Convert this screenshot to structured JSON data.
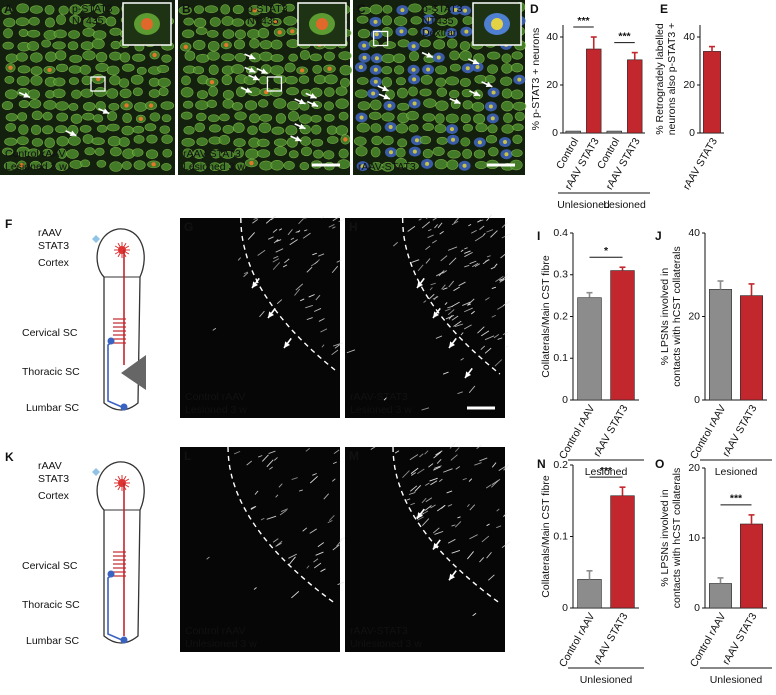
{
  "figure": {
    "micrographs": [
      {
        "label": "A",
        "stains": [
          {
            "text": "p-STAT3",
            "color": "#e0502a"
          },
          {
            "text": "NT435",
            "color": "#7dc242"
          }
        ],
        "caption": [
          "Control rAAV",
          "Lesioned 3 w"
        ]
      },
      {
        "label": "B",
        "stains": [
          {
            "text": "p-STAT3",
            "color": "#e0502a"
          },
          {
            "text": "NT435",
            "color": "#7dc242"
          }
        ],
        "caption": [
          "rAAV-STAT3",
          "Lesioned 3 w"
        ]
      },
      {
        "label": "C",
        "stains": [
          {
            "text": "p-STAT3",
            "color": "#e0502a"
          },
          {
            "text": "NT435",
            "color": "#7dc242"
          },
          {
            "text": "Dextran",
            "color": "#6a9be0"
          }
        ],
        "caption": [
          "rAAV-STAT3"
        ]
      },
      {
        "label": "G",
        "caption": [
          "Control rAAV",
          "Lesioned 3 w"
        ]
      },
      {
        "label": "H",
        "caption": [
          "rAAV-STAT3",
          "Lesioned 3 w"
        ]
      },
      {
        "label": "L",
        "caption": [
          "Control rAAV",
          "Unlesioned 3 w"
        ]
      },
      {
        "label": "M",
        "caption": [
          "rAAV-STAT3",
          "Unlesioned 3 w"
        ]
      }
    ],
    "diagrams": [
      {
        "label": "F",
        "vector": [
          "rAAV",
          "STAT3"
        ],
        "levels": [
          "Cortex",
          "Cervical SC",
          "Thoracic SC",
          "Lumbar SC"
        ]
      },
      {
        "label": "K",
        "vector": [
          "rAAV",
          "STAT3"
        ],
        "levels": [
          "Cortex",
          "Cervical SC",
          "Thoracic SC",
          "Lumbar SC"
        ]
      }
    ]
  },
  "chart_data": [
    {
      "label": "D",
      "type": "bar",
      "ylabel": [
        "% p-STAT3 + neurons"
      ],
      "categories": [
        "Control",
        "rAAV STAT3",
        "Control",
        "rAAV STAT3"
      ],
      "values": [
        0.8,
        35,
        0.8,
        30.5
      ],
      "errors": [
        null,
        5,
        null,
        3
      ],
      "colors": [
        "#8c8c8c",
        "#c1272d",
        "#8c8c8c",
        "#c1272d"
      ],
      "ylim": [
        0,
        45
      ],
      "yticks": [
        0,
        20,
        40
      ],
      "groups": [
        "Unlesioned",
        "Lesioned"
      ],
      "annotations": [
        {
          "label": "***",
          "color": "#c1272d"
        },
        {
          "label": "***",
          "color": "#c1272d"
        }
      ]
    },
    {
      "label": "E",
      "type": "bar",
      "ylabel": [
        "% Retrogradely labelled",
        "neurons also p-STAT3 +"
      ],
      "categories": [
        "rAAV STAT3"
      ],
      "values": [
        34
      ],
      "errors": [
        2
      ],
      "colors": [
        "#c1272d"
      ],
      "ylim": [
        0,
        45
      ],
      "yticks": [
        0,
        20,
        40
      ]
    },
    {
      "label": "I",
      "type": "bar",
      "ylabel": [
        "Collaterals/Main CST fibre"
      ],
      "categories": [
        "Control rAAV",
        "rAAV STAT3"
      ],
      "values": [
        0.245,
        0.31
      ],
      "errors": [
        0.012,
        0.008
      ],
      "colors": [
        "#8c8c8c",
        "#c1272d"
      ],
      "ylim": [
        0,
        0.4
      ],
      "yticks": [
        0,
        0.1,
        0.2,
        0.3,
        0.4
      ],
      "groups": [
        "Lesioned"
      ],
      "annotations": [
        {
          "label": "*",
          "color": "#c1272d"
        }
      ]
    },
    {
      "label": "J",
      "type": "bar",
      "ylabel": [
        "% LPSNs involved in",
        "contacts with hCST collaterals"
      ],
      "categories": [
        "Control rAAV",
        "rAAV STAT3"
      ],
      "values": [
        26.5,
        25
      ],
      "errors": [
        2,
        2.8
      ],
      "colors": [
        "#8c8c8c",
        "#c1272d"
      ],
      "ylim": [
        0,
        40
      ],
      "yticks": [
        0,
        20,
        40
      ],
      "groups": [
        "Lesioned"
      ]
    },
    {
      "label": "N",
      "type": "bar",
      "ylabel": [
        "Collaterals/Main CST fibre"
      ],
      "categories": [
        "Control rAAV",
        "rAAV STAT3"
      ],
      "values": [
        0.04,
        0.157
      ],
      "errors": [
        0.012,
        0.012
      ],
      "colors": [
        "#8c8c8c",
        "#c1272d"
      ],
      "ylim": [
        0,
        0.2
      ],
      "yticks": [
        0,
        0.1,
        0.2
      ],
      "groups": [
        "Unlesioned"
      ],
      "annotations": [
        {
          "label": "***",
          "color": "#c1272d"
        }
      ]
    },
    {
      "label": "O",
      "type": "bar",
      "ylabel": [
        "% LPSNs involved in",
        "contacts with hCST collaterals"
      ],
      "categories": [
        "Control rAAV",
        "rAAV STAT3"
      ],
      "values": [
        3.5,
        12
      ],
      "errors": [
        0.8,
        1.3
      ],
      "colors": [
        "#8c8c8c",
        "#c1272d"
      ],
      "ylim": [
        0,
        20
      ],
      "yticks": [
        0,
        10,
        20
      ],
      "groups": [
        "Unlesioned"
      ],
      "annotations": [
        {
          "label": "***",
          "color": "#c1272d"
        }
      ]
    }
  ]
}
